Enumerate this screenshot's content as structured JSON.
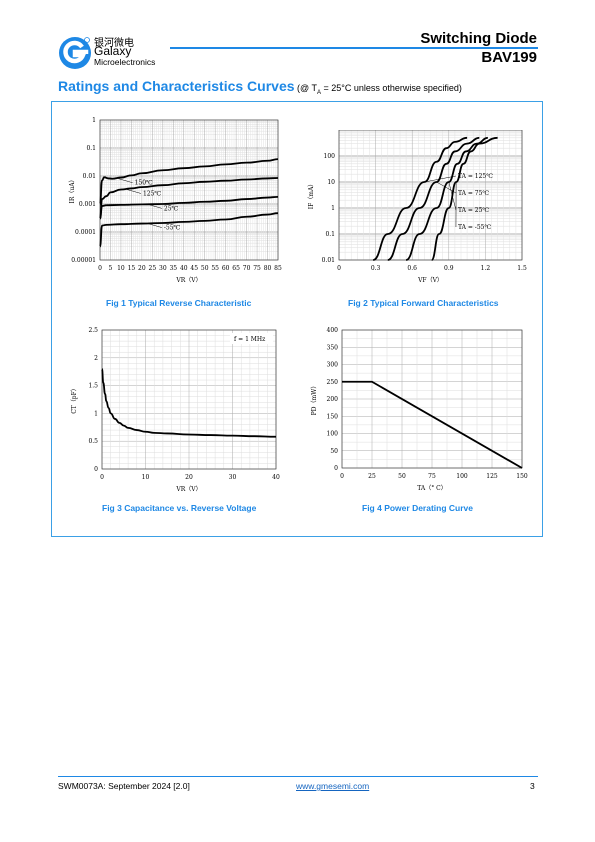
{
  "header": {
    "logo_chinese": "银河微电",
    "logo_name": "Galaxy",
    "logo_sub": "Microelectronics",
    "title": "Switching Diode",
    "part": "BAV199",
    "accent": "#1e88e5"
  },
  "section": {
    "title": "Ratings and Characteristics Curves",
    "cond_prefix": "(@ T",
    "cond_sub": "A",
    "cond_suffix": " = 25°C unless otherwise specified)"
  },
  "captions": {
    "fig1": "Fig 1    Typical Reverse Characteristic",
    "fig2": "Fig 2    Typical Forward Characteristics",
    "fig3": "Fig 3    Capacitance vs. Reverse Voltage",
    "fig4": "Fig 4    Power Derating Curve"
  },
  "footer": {
    "doc": "SWM0073A: September 2024 [2.0]",
    "url": "www.gmesemi.com",
    "page": "3"
  },
  "chart_data": [
    {
      "type": "line",
      "title": "Fig 1    Typical Reverse Characteristic",
      "xlabel": "VR（V）",
      "ylabel": "IR（uA）",
      "log_y": true,
      "grid": true,
      "xlim": [
        0,
        85
      ],
      "ylim": [
        1e-05,
        1
      ],
      "xticks": [
        0,
        5,
        10,
        15,
        20,
        25,
        30,
        35,
        40,
        45,
        50,
        55,
        60,
        65,
        70,
        75,
        80,
        85
      ],
      "yticks": [
        "0.00001",
        "0.0001",
        "0.001",
        "0.01",
        "0.1",
        "1"
      ],
      "series": [
        {
          "name": "150℃",
          "x": [
            0,
            1,
            2,
            4,
            6,
            10,
            15,
            20,
            30,
            40,
            50,
            60,
            70,
            80,
            85
          ],
          "y": [
            0.001,
            0.007,
            0.009,
            0.0082,
            0.008,
            0.0088,
            0.0105,
            0.0125,
            0.016,
            0.019,
            0.022,
            0.026,
            0.03,
            0.035,
            0.04
          ]
        },
        {
          "name": "125℃",
          "x": [
            0,
            1,
            3,
            5,
            10,
            15,
            20,
            30,
            40,
            50,
            60,
            70,
            80,
            85
          ],
          "y": [
            0.0003,
            0.0015,
            0.0019,
            0.0026,
            0.0033,
            0.0036,
            0.004,
            0.0047,
            0.0055,
            0.0062,
            0.0068,
            0.0075,
            0.0082,
            0.0085
          ]
        },
        {
          "name": "25℃",
          "x": [
            0,
            1,
            3,
            10,
            20,
            30,
            40,
            50,
            60,
            70,
            80,
            85
          ],
          "y": [
            0.0003,
            0.00085,
            0.0009,
            0.00093,
            0.00097,
            0.001,
            0.0011,
            0.0012,
            0.0013,
            0.0015,
            0.0017,
            0.0018
          ]
        },
        {
          "name": "-55℃",
          "x": [
            0,
            1,
            3,
            10,
            20,
            30,
            40,
            50,
            60,
            70,
            80,
            85
          ],
          "y": [
            3e-05,
            0.00017,
            0.00018,
            0.00019,
            0.0002,
            0.00021,
            0.00023,
            0.00025,
            0.00028,
            0.00035,
            0.00042,
            0.00047
          ]
        }
      ],
      "labels": [
        {
          "text": "150℃",
          "series": 0
        },
        {
          "text": "125℃",
          "series": 1
        },
        {
          "text": "25℃",
          "series": 2
        },
        {
          "text": "-55℃",
          "series": 3
        }
      ]
    },
    {
      "type": "line",
      "title": "Fig 2    Typical Forward Characteristics",
      "xlabel": "VF（V）",
      "ylabel": "IF（mA）",
      "log_y": true,
      "grid": true,
      "xlim": [
        0,
        1.5
      ],
      "ylim": [
        0.01,
        1000
      ],
      "xticks": [
        "0",
        "0.3",
        "0.6",
        "0.9",
        "1.2",
        "1.5"
      ],
      "yticks": [
        "0.01",
        "0.1",
        "1",
        "10",
        "100"
      ],
      "series": [
        {
          "name": "TA = 125℃",
          "x": [
            0.28,
            0.4,
            0.55,
            0.7,
            0.8,
            0.88,
            0.95,
            1.05
          ],
          "y": [
            0.01,
            0.1,
            1,
            10,
            60,
            200,
            350,
            500
          ]
        },
        {
          "name": "TA = 75℃",
          "x": [
            0.4,
            0.52,
            0.66,
            0.8,
            0.88,
            0.95,
            1.05,
            1.15
          ],
          "y": [
            0.01,
            0.1,
            1,
            10,
            50,
            150,
            300,
            500
          ]
        },
        {
          "name": "TA = 25℃",
          "x": [
            0.55,
            0.66,
            0.8,
            0.9,
            0.97,
            1.04,
            1.13,
            1.22
          ],
          "y": [
            0.01,
            0.1,
            1,
            10,
            50,
            150,
            300,
            500
          ]
        },
        {
          "name": "TA = -55℃",
          "x": [
            0.76,
            0.82,
            0.9,
            0.96,
            1.02,
            1.08,
            1.15,
            1.3
          ],
          "y": [
            0.01,
            0.1,
            1,
            10,
            50,
            150,
            300,
            500
          ]
        }
      ],
      "labels": [
        {
          "text": "TA = 125℃",
          "series": 0
        },
        {
          "text": "TA = 75℃",
          "series": 1
        },
        {
          "text": "TA = 25℃",
          "series": 2
        },
        {
          "text": "TA = -55℃",
          "series": 3
        }
      ]
    },
    {
      "type": "line",
      "title": "Fig 3    Capacitance vs. Reverse Voltage",
      "xlabel": "VR（V）",
      "ylabel": "CT（pF）",
      "annotation": "f = 1 MHz",
      "grid": true,
      "xlim": [
        0,
        40
      ],
      "ylim": [
        0,
        2.5
      ],
      "xticks": [
        "0",
        "10",
        "20",
        "30",
        "40"
      ],
      "yticks": [
        "0",
        "0.5",
        "1",
        "1.5",
        "2",
        "2.5"
      ],
      "series": [
        {
          "name": "",
          "x": [
            0,
            0.3,
            0.7,
            1,
            1.5,
            2,
            3,
            4,
            5,
            6,
            8,
            10,
            12,
            15,
            20,
            25,
            30,
            35,
            40
          ],
          "y": [
            1.8,
            1.55,
            1.35,
            1.22,
            1.1,
            1.0,
            0.9,
            0.83,
            0.78,
            0.74,
            0.7,
            0.67,
            0.65,
            0.64,
            0.62,
            0.61,
            0.6,
            0.59,
            0.58
          ]
        }
      ]
    },
    {
      "type": "line",
      "title": "Fig 4    Power Derating Curve",
      "xlabel": "TA（° C）",
      "ylabel": "PD（mW）",
      "grid": true,
      "xlim": [
        0,
        150
      ],
      "ylim": [
        0,
        400
      ],
      "xticks": [
        "0",
        "25",
        "50",
        "75",
        "100",
        "125",
        "150"
      ],
      "yticks": [
        "0",
        "50",
        "100",
        "150",
        "200",
        "250",
        "300",
        "350",
        "400"
      ],
      "series": [
        {
          "name": "",
          "x": [
            0,
            25,
            150
          ],
          "y": [
            250,
            250,
            0
          ]
        }
      ]
    }
  ]
}
